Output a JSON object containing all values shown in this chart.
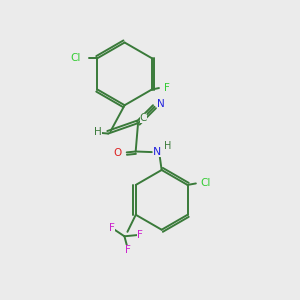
{
  "background_color": "#ebebeb",
  "bond_color": "#3a7a3a",
  "text_colors": {
    "Cl": "#33cc33",
    "F": "#33cc33",
    "N": "#2222dd",
    "O": "#dd2222",
    "C": "#3a7a3a",
    "H": "#3a7a3a",
    "CF3_F": "#cc22cc"
  },
  "figsize": [
    3.0,
    3.0
  ],
  "dpi": 100
}
